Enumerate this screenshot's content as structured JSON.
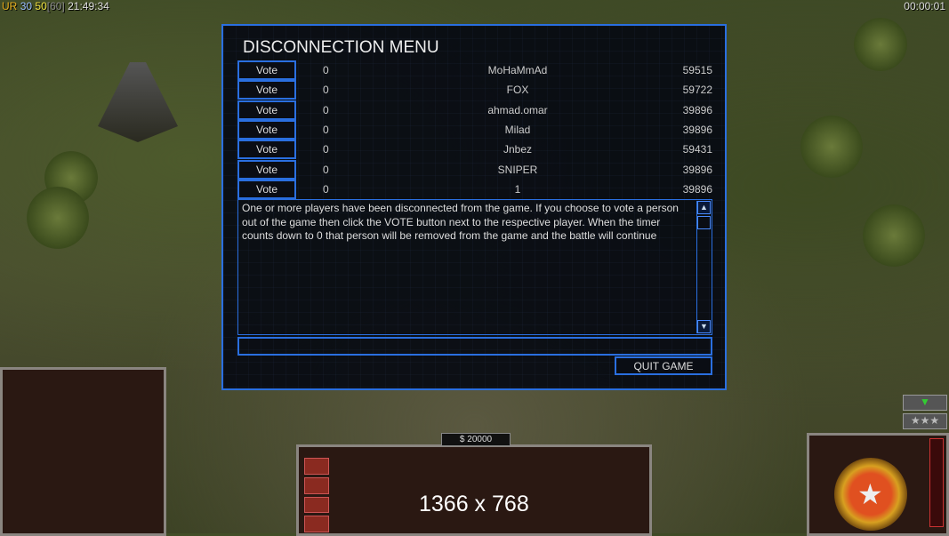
{
  "status": {
    "ur_label": "UR",
    "v1": "30",
    "v2": "50",
    "v3": "[60]",
    "clock": "21:49:34",
    "timer": "00:00:01"
  },
  "dialog": {
    "title": "DISCONNECTION MENU",
    "vote_label": "Vote",
    "players": [
      {
        "votes": "0",
        "name": "MoHaMmAd",
        "ping": "59515"
      },
      {
        "votes": "0",
        "name": "FOX",
        "ping": "59722"
      },
      {
        "votes": "0",
        "name": "ahmad.omar",
        "ping": "39896"
      },
      {
        "votes": "0",
        "name": "Milad",
        "ping": "39896"
      },
      {
        "votes": "0",
        "name": "Jnbez",
        "ping": "59431"
      },
      {
        "votes": "0",
        "name": "SNIPER",
        "ping": "39896"
      },
      {
        "votes": "0",
        "name": "1",
        "ping": "39896"
      }
    ],
    "message": "One or more players have been disconnected from the game. If you choose to vote a person out of the game then click the VOTE button next to the respective player. When the timer counts down to 0 that person will be removed from the game and the battle will continue",
    "chat_value": "",
    "quit_label": "QUIT GAME"
  },
  "hud": {
    "money": "$ 20000",
    "resolution": "1366 x 768",
    "rank_stars": "★★★"
  }
}
